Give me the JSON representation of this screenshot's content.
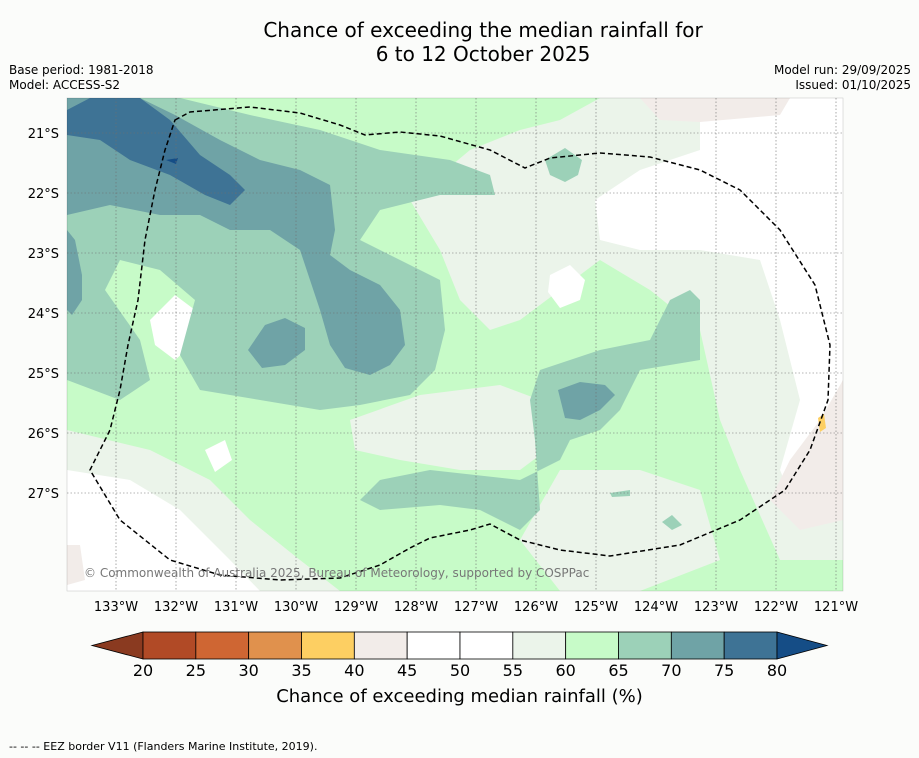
{
  "title_line1": "Chance of exceeding the median rainfall for",
  "title_line2": "6 to 12 October 2025",
  "base_period": "Base period: 1981-2018",
  "model": "Model: ACCESS-S2",
  "model_run": "Model run: 29/09/2025",
  "issued": "Issued: 01/10/2025",
  "lat_labels": [
    "21°S",
    "22°S",
    "23°S",
    "24°S",
    "25°S",
    "26°S",
    "27°S"
  ],
  "lon_labels": [
    "133°W",
    "132°W",
    "131°W",
    "130°W",
    "129°W",
    "128°W",
    "127°W",
    "126°W",
    "125°W",
    "124°W",
    "123°W",
    "122°W",
    "121°W"
  ],
  "copyright": "© Commonwealth of Australia 2025, Bureau of Meteorology, supported by COSPPac",
  "colorbar": {
    "ticks": [
      "20",
      "25",
      "30",
      "35",
      "40",
      "45",
      "50",
      "55",
      "60",
      "65",
      "70",
      "75",
      "80"
    ],
    "colors": [
      "#b14a26",
      "#cf6633",
      "#e0914d",
      "#fdcf62",
      "#f2ece9",
      "#ffffff",
      "#ffffff",
      "#ebf4ea",
      "#c7fbc8",
      "#9cd1b8",
      "#6fa3a6",
      "#3e7395"
    ],
    "under_color": "#8a3a20",
    "over_color": "#154d86",
    "title": "Chance of exceeding median rainfall (%)"
  },
  "footer": "-- -- -- EEZ border V11 (Flanders Marine Institute, 2019)."
}
